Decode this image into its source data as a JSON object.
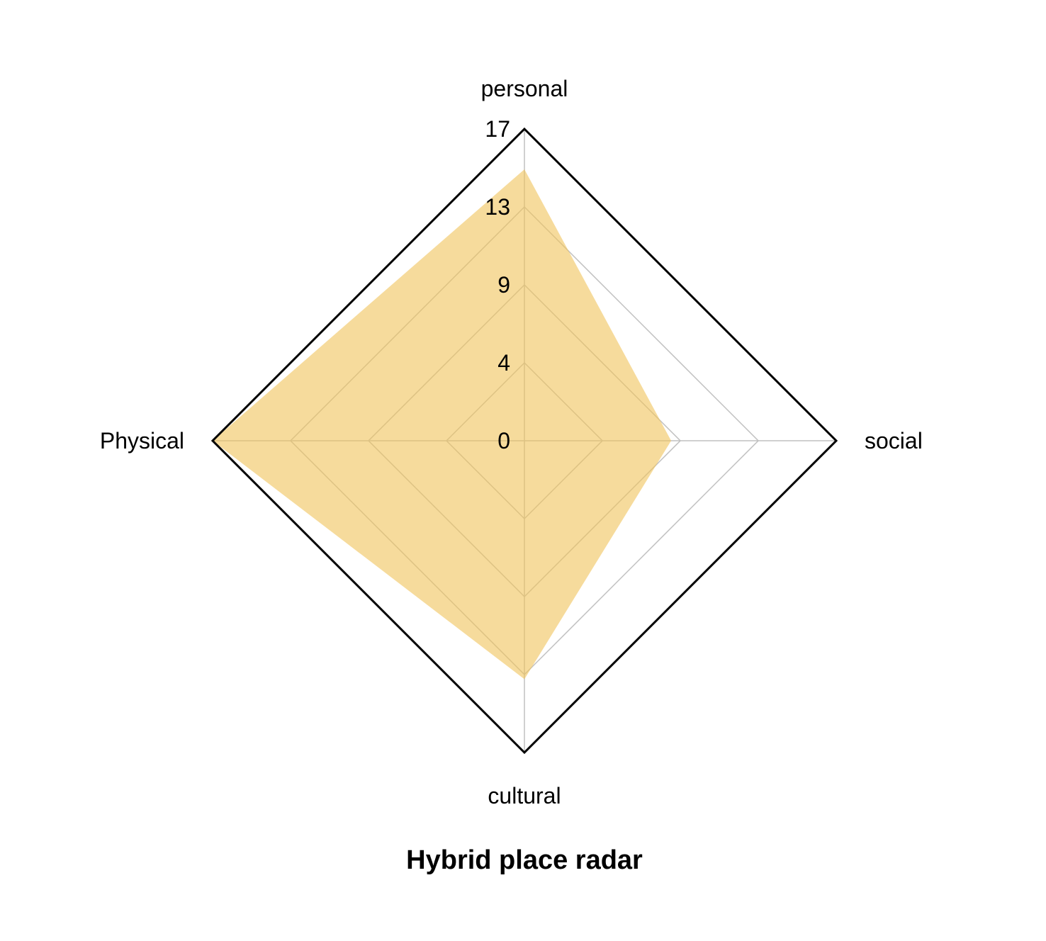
{
  "chart_data": {
    "type": "radar",
    "title": "Hybrid place radar",
    "axes": [
      "personal",
      "social",
      "cultural",
      "Physical"
    ],
    "radial_ticks": [
      "0",
      "4",
      "9",
      "13",
      "17"
    ],
    "rmax": 17,
    "grid": true,
    "series": [
      {
        "values": [
          14.8,
          8,
          13,
          17
        ],
        "color": "#f0c35a"
      }
    ],
    "colors": {
      "fill": "#f0c35a",
      "grid": "#c0c0c0",
      "outer": "#000000"
    }
  }
}
